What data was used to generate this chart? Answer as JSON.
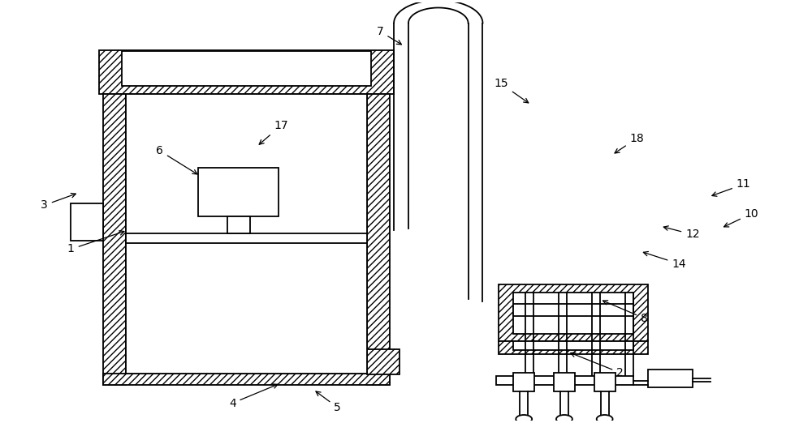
{
  "bg_color": "#ffffff",
  "line_color": "#000000",
  "lw": 1.3,
  "fig_w": 10.0,
  "fig_h": 5.22,
  "labels": {
    "1": [
      0.085,
      0.41,
      0.155,
      0.455
    ],
    "2": [
      0.765,
      0.115,
      0.7,
      0.165
    ],
    "3": [
      0.052,
      0.515,
      0.095,
      0.545
    ],
    "4": [
      0.285,
      0.042,
      0.345,
      0.09
    ],
    "5": [
      0.415,
      0.032,
      0.385,
      0.075
    ],
    "6": [
      0.195,
      0.645,
      0.245,
      0.585
    ],
    "7": [
      0.468,
      0.93,
      0.498,
      0.895
    ],
    "8": [
      0.795,
      0.245,
      0.74,
      0.29
    ],
    "10": [
      0.928,
      0.495,
      0.89,
      0.46
    ],
    "11": [
      0.918,
      0.565,
      0.875,
      0.535
    ],
    "12": [
      0.855,
      0.445,
      0.815,
      0.465
    ],
    "14": [
      0.838,
      0.375,
      0.79,
      0.405
    ],
    "15": [
      0.618,
      0.805,
      0.655,
      0.755
    ],
    "17": [
      0.345,
      0.705,
      0.315,
      0.655
    ],
    "18": [
      0.786,
      0.675,
      0.755,
      0.635
    ]
  }
}
